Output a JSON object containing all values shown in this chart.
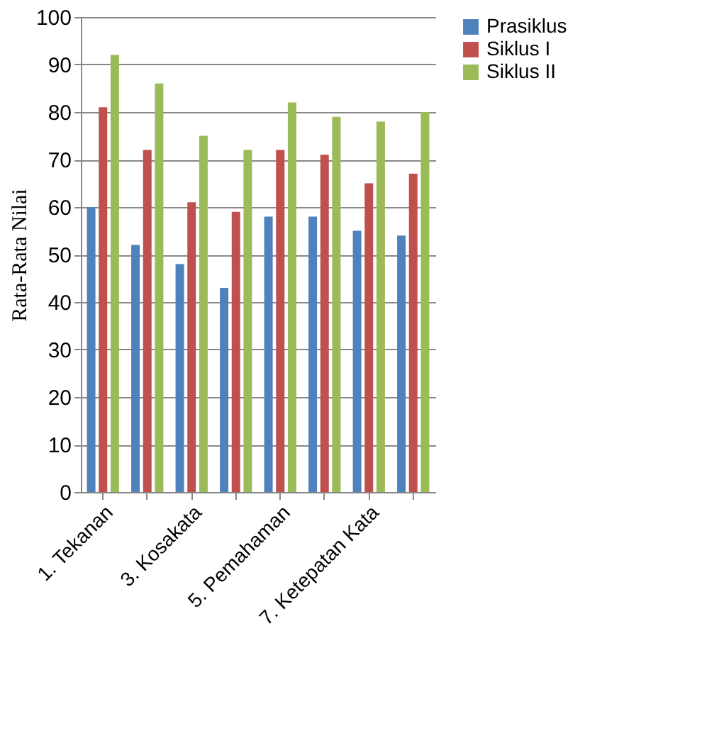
{
  "chart_data": {
    "type": "bar",
    "ylabel": "Rata-Rata Nilai",
    "categories": [
      "1. Tekanan",
      null,
      "3. Kosakata",
      null,
      "5. Pemahaman",
      null,
      "7. Ketepatan Kata",
      null
    ],
    "series": [
      {
        "name": "Prasiklus",
        "color": "#4f81bd",
        "values": [
          60,
          52,
          48,
          43,
          58,
          58,
          55,
          54
        ]
      },
      {
        "name": "Siklus I",
        "color": "#c0504d",
        "values": [
          81,
          72,
          61,
          59,
          72,
          71,
          65,
          67
        ]
      },
      {
        "name": "Siklus II",
        "color": "#9bbb59",
        "values": [
          92,
          86,
          75,
          72,
          82,
          79,
          78,
          80
        ]
      }
    ],
    "ylim": [
      0,
      100
    ],
    "yticks": [
      0,
      10,
      20,
      30,
      40,
      50,
      60,
      70,
      80,
      90,
      100
    ],
    "grid": "y",
    "legend": "right"
  }
}
